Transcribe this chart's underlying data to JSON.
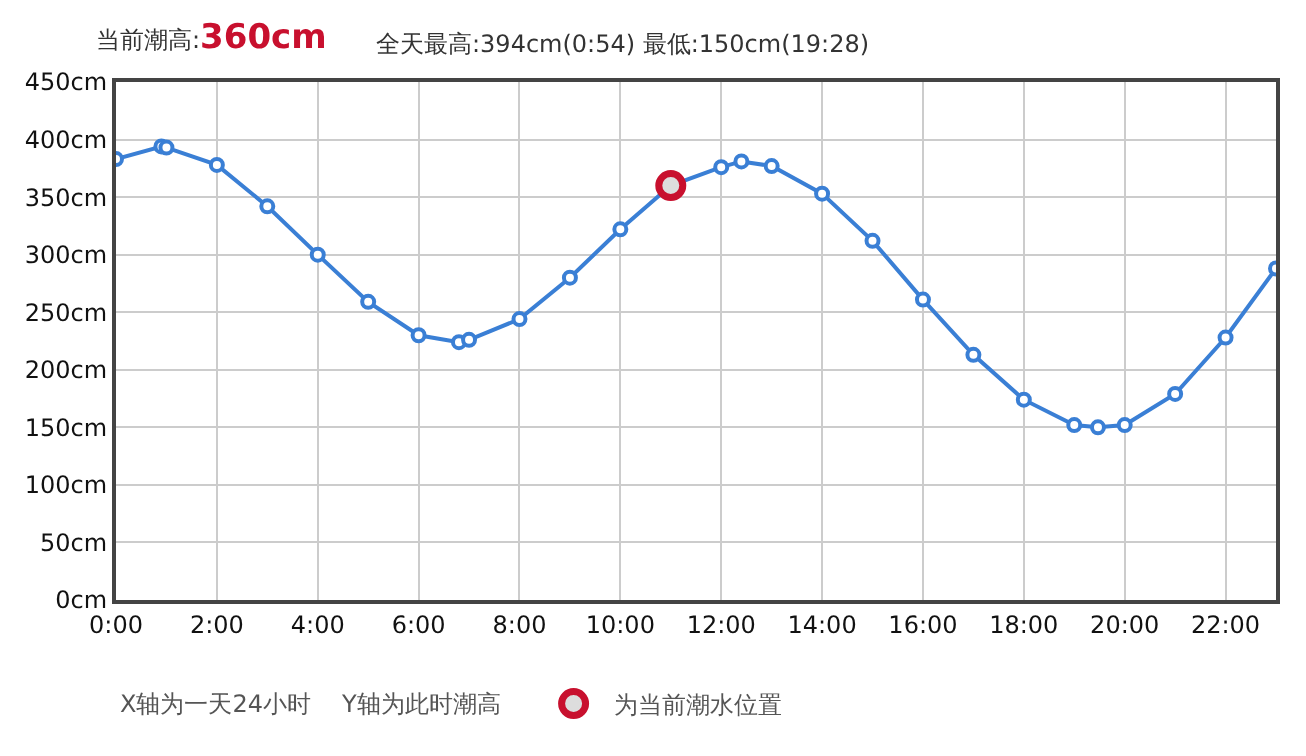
{
  "chart_data": {
    "type": "line",
    "title": "当前潮高:360cm",
    "subtitle": "全天最高:394cm(0:54) 最低:150cm(19:28)",
    "annotations": [
      "X轴为一天24小时",
      "Y轴为此时潮高"
    ],
    "series": [
      {
        "color": "#3a7fd5",
        "x": [
          0,
          0.9,
          1,
          2,
          3,
          4,
          5,
          6,
          6.8,
          7,
          8,
          9,
          10,
          11,
          12,
          12.4,
          13,
          14,
          15,
          16,
          17,
          18,
          19,
          19.47,
          20,
          21,
          22,
          23
        ],
        "values": [
          383,
          394,
          393,
          378,
          342,
          300,
          259,
          230,
          224,
          226,
          244,
          280,
          322,
          360,
          376,
          381,
          377,
          353,
          312,
          261,
          213,
          174,
          152,
          150,
          152,
          179,
          228,
          288
        ]
      },
      {
        "type": "scatter",
        "name": "为当前潮水位置",
        "color": "#c8102e",
        "x": [
          11
        ],
        "values": [
          360
        ]
      }
    ],
    "xlim": [
      0,
      23
    ],
    "xticks": [
      {
        "value": 0,
        "label": "0:00"
      },
      {
        "value": 2,
        "label": "2:00"
      },
      {
        "value": 4,
        "label": "4:00"
      },
      {
        "value": 6,
        "label": "6:00"
      },
      {
        "value": 8,
        "label": "8:00"
      },
      {
        "value": 10,
        "label": "10:00"
      },
      {
        "value": 12,
        "label": "12:00"
      },
      {
        "value": 14,
        "label": "14:00"
      },
      {
        "value": 16,
        "label": "16:00"
      },
      {
        "value": 18,
        "label": "18:00"
      },
      {
        "value": 20,
        "label": "20:00"
      },
      {
        "value": 22,
        "label": "22:00"
      }
    ],
    "ylim": [
      0,
      450
    ],
    "yticks": [
      {
        "value": 0,
        "label": "0cm"
      },
      {
        "value": 50,
        "label": "50cm"
      },
      {
        "value": 100,
        "label": "100cm"
      },
      {
        "value": 150,
        "label": "150cm"
      },
      {
        "value": 200,
        "label": "200cm"
      },
      {
        "value": 250,
        "label": "250cm"
      },
      {
        "value": 300,
        "label": "300cm"
      },
      {
        "value": 350,
        "label": "350cm"
      },
      {
        "value": 400,
        "label": "400cm"
      },
      {
        "value": 450,
        "label": "450cm"
      }
    ],
    "grid": true,
    "legend": "bottom",
    "marker": "circle",
    "line_style": "solid"
  }
}
